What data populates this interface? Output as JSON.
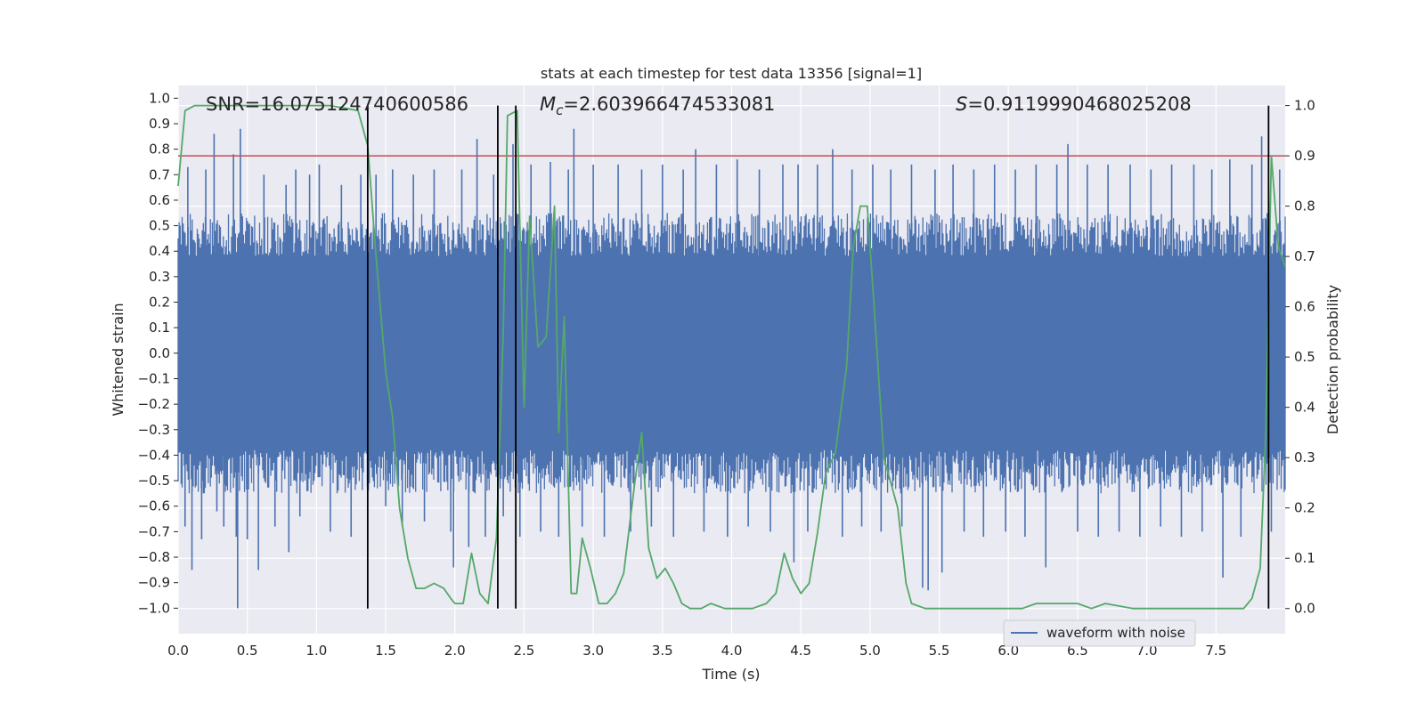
{
  "chart_data": {
    "type": "line",
    "title": "stats at each timestep for test data 13356 [signal=1]",
    "xlabel": "Time (s)",
    "ylabel": "Whitened strain",
    "ylabel_right": "Detection probability",
    "xlim": [
      0,
      8
    ],
    "ylim": [
      -1.1,
      1.05
    ],
    "ylim_right": [
      -0.05,
      1.04
    ],
    "xticks": [
      "0.0",
      "0.5",
      "1.0",
      "1.5",
      "2.0",
      "2.5",
      "3.0",
      "3.5",
      "4.0",
      "4.5",
      "5.0",
      "5.5",
      "6.0",
      "6.5",
      "7.0",
      "7.5"
    ],
    "yticks": [
      "1.0",
      "0.9",
      "0.8",
      "0.7",
      "0.6",
      "0.5",
      "0.4",
      "0.3",
      "0.2",
      "0.1",
      "0.0",
      "-0.1",
      "-0.2",
      "-0.3",
      "-0.4",
      "-0.5",
      "-0.6",
      "-0.7",
      "-0.8",
      "-0.9",
      "-1.0"
    ],
    "yticks_right": [
      "1.0",
      "0.9",
      "0.8",
      "0.7",
      "0.6",
      "0.5",
      "0.4",
      "0.3",
      "0.2",
      "0.1",
      "0.0"
    ],
    "annotations": {
      "snr": "SNR=16.075124740600586",
      "mc_symbol": "M",
      "mc_sub": "c",
      "mc_value": "=2.603966474533081",
      "s_symbol": "S",
      "s_value": "=0.9119990468025208"
    },
    "legend": {
      "label": "waveform with noise",
      "position": "lower-right"
    },
    "threshold_right": 0.9,
    "vertical_lines_x": [
      1.37,
      2.31,
      2.44,
      7.88
    ],
    "series": [
      {
        "name": "waveform with noise",
        "axis": "left",
        "color": "#4c72b0",
        "style": "dense noise, |y| mostly < 0.55, spikes to about ±0.9",
        "spikes": [
          [
            0.05,
            -0.68
          ],
          [
            0.07,
            0.73
          ],
          [
            0.1,
            -0.85
          ],
          [
            0.17,
            -0.73
          ],
          [
            0.2,
            0.72
          ],
          [
            0.26,
            0.86
          ],
          [
            0.28,
            -0.62
          ],
          [
            0.33,
            -0.68
          ],
          [
            0.4,
            0.78
          ],
          [
            0.42,
            -0.72
          ],
          [
            0.43,
            -1.0
          ],
          [
            0.45,
            0.88
          ],
          [
            0.5,
            -0.73
          ],
          [
            0.58,
            -0.85
          ],
          [
            0.62,
            0.7
          ],
          [
            0.7,
            -0.68
          ],
          [
            0.78,
            0.66
          ],
          [
            0.8,
            -0.78
          ],
          [
            0.85,
            0.72
          ],
          [
            0.88,
            -0.64
          ],
          [
            0.95,
            0.7
          ],
          [
            1.02,
            0.74
          ],
          [
            1.1,
            -0.7
          ],
          [
            1.18,
            0.66
          ],
          [
            1.25,
            -0.72
          ],
          [
            1.32,
            0.7
          ],
          [
            1.43,
            0.7
          ],
          [
            1.5,
            -0.6
          ],
          [
            1.55,
            0.72
          ],
          [
            1.62,
            -0.68
          ],
          [
            1.7,
            0.7
          ],
          [
            1.78,
            -0.66
          ],
          [
            1.85,
            0.72
          ],
          [
            1.97,
            -0.7
          ],
          [
            1.99,
            -0.84
          ],
          [
            2.05,
            0.72
          ],
          [
            2.1,
            -0.76
          ],
          [
            2.16,
            0.84
          ],
          [
            2.22,
            -0.72
          ],
          [
            2.28,
            0.7
          ],
          [
            2.35,
            -0.64
          ],
          [
            2.42,
            0.82
          ],
          [
            2.47,
            -0.72
          ],
          [
            2.55,
            0.74
          ],
          [
            2.62,
            -0.7
          ],
          [
            2.69,
            0.75
          ],
          [
            2.75,
            -0.72
          ],
          [
            2.82,
            0.72
          ],
          [
            2.86,
            0.88
          ],
          [
            2.92,
            -0.68
          ],
          [
            3.0,
            0.74
          ],
          [
            3.08,
            -0.72
          ],
          [
            3.18,
            0.74
          ],
          [
            3.27,
            -0.7
          ],
          [
            3.35,
            0.72
          ],
          [
            3.42,
            -0.68
          ],
          [
            3.5,
            0.74
          ],
          [
            3.58,
            -0.72
          ],
          [
            3.65,
            0.72
          ],
          [
            3.74,
            0.8
          ],
          [
            3.8,
            -0.7
          ],
          [
            3.89,
            0.74
          ],
          [
            3.97,
            -0.72
          ],
          [
            4.04,
            0.76
          ],
          [
            4.12,
            -0.68
          ],
          [
            4.2,
            0.72
          ],
          [
            4.28,
            -0.7
          ],
          [
            4.37,
            0.74
          ],
          [
            4.45,
            -0.82
          ],
          [
            4.48,
            0.74
          ],
          [
            4.55,
            -0.7
          ],
          [
            4.62,
            0.74
          ],
          [
            4.73,
            0.8
          ],
          [
            4.8,
            -0.72
          ],
          [
            4.87,
            0.72
          ],
          [
            4.94,
            -0.68
          ],
          [
            5.02,
            0.74
          ],
          [
            5.08,
            -0.7
          ],
          [
            5.15,
            0.72
          ],
          [
            5.23,
            -0.68
          ],
          [
            5.3,
            0.74
          ],
          [
            5.38,
            -0.92
          ],
          [
            5.42,
            -0.93
          ],
          [
            5.47,
            0.72
          ],
          [
            5.52,
            -0.86
          ],
          [
            5.6,
            0.74
          ],
          [
            5.68,
            -0.7
          ],
          [
            5.75,
            0.72
          ],
          [
            5.82,
            -0.72
          ],
          [
            5.9,
            0.74
          ],
          [
            5.98,
            -0.7
          ],
          [
            6.05,
            0.72
          ],
          [
            6.12,
            -0.72
          ],
          [
            6.2,
            0.74
          ],
          [
            6.27,
            -0.84
          ],
          [
            6.35,
            0.74
          ],
          [
            6.43,
            0.82
          ],
          [
            6.5,
            -0.7
          ],
          [
            6.57,
            0.74
          ],
          [
            6.65,
            -0.72
          ],
          [
            6.72,
            0.74
          ],
          [
            6.8,
            -0.7
          ],
          [
            6.88,
            0.74
          ],
          [
            6.95,
            -0.72
          ],
          [
            7.03,
            0.72
          ],
          [
            7.1,
            -0.68
          ],
          [
            7.18,
            0.74
          ],
          [
            7.25,
            -0.72
          ],
          [
            7.34,
            0.74
          ],
          [
            7.4,
            -0.7
          ],
          [
            7.47,
            0.72
          ],
          [
            7.55,
            -0.88
          ],
          [
            7.6,
            0.76
          ],
          [
            7.68,
            -0.72
          ],
          [
            7.76,
            0.74
          ],
          [
            7.83,
            0.85
          ],
          [
            7.9,
            -0.7
          ],
          [
            7.96,
            0.72
          ]
        ]
      },
      {
        "name": "detection probability",
        "axis": "right",
        "color": "#55a868",
        "points": [
          [
            0.0,
            0.84
          ],
          [
            0.05,
            0.99
          ],
          [
            0.12,
            1.0
          ],
          [
            0.4,
            1.0
          ],
          [
            0.46,
            1.0
          ],
          [
            1.1,
            1.0
          ],
          [
            1.3,
            0.99
          ],
          [
            1.37,
            0.92
          ],
          [
            1.43,
            0.7
          ],
          [
            1.5,
            0.47
          ],
          [
            1.55,
            0.38
          ],
          [
            1.6,
            0.2
          ],
          [
            1.66,
            0.1
          ],
          [
            1.72,
            0.04
          ],
          [
            1.78,
            0.04
          ],
          [
            1.85,
            0.05
          ],
          [
            1.92,
            0.04
          ],
          [
            1.97,
            0.02
          ],
          [
            2.0,
            0.01
          ],
          [
            2.06,
            0.01
          ],
          [
            2.12,
            0.11
          ],
          [
            2.18,
            0.03
          ],
          [
            2.24,
            0.01
          ],
          [
            2.3,
            0.14
          ],
          [
            2.35,
            0.55
          ],
          [
            2.38,
            0.98
          ],
          [
            2.45,
            0.99
          ],
          [
            2.5,
            0.4
          ],
          [
            2.54,
            0.78
          ],
          [
            2.6,
            0.52
          ],
          [
            2.66,
            0.54
          ],
          [
            2.72,
            0.8
          ],
          [
            2.75,
            0.35
          ],
          [
            2.79,
            0.58
          ],
          [
            2.84,
            0.03
          ],
          [
            2.88,
            0.03
          ],
          [
            2.92,
            0.14
          ],
          [
            2.98,
            0.08
          ],
          [
            3.04,
            0.01
          ],
          [
            3.1,
            0.01
          ],
          [
            3.16,
            0.03
          ],
          [
            3.22,
            0.07
          ],
          [
            3.3,
            0.25
          ],
          [
            3.35,
            0.35
          ],
          [
            3.4,
            0.12
          ],
          [
            3.46,
            0.06
          ],
          [
            3.52,
            0.08
          ],
          [
            3.58,
            0.05
          ],
          [
            3.64,
            0.01
          ],
          [
            3.7,
            0.0
          ],
          [
            3.78,
            0.0
          ],
          [
            3.85,
            0.01
          ],
          [
            3.95,
            0.0
          ],
          [
            4.05,
            0.0
          ],
          [
            4.15,
            0.0
          ],
          [
            4.25,
            0.01
          ],
          [
            4.32,
            0.03
          ],
          [
            4.38,
            0.11
          ],
          [
            4.44,
            0.06
          ],
          [
            4.5,
            0.03
          ],
          [
            4.56,
            0.05
          ],
          [
            4.62,
            0.15
          ],
          [
            4.68,
            0.27
          ],
          [
            4.75,
            0.31
          ],
          [
            4.83,
            0.48
          ],
          [
            4.88,
            0.72
          ],
          [
            4.93,
            0.8
          ],
          [
            4.98,
            0.8
          ],
          [
            5.03,
            0.6
          ],
          [
            5.1,
            0.3
          ],
          [
            5.2,
            0.2
          ],
          [
            5.26,
            0.05
          ],
          [
            5.3,
            0.01
          ],
          [
            5.4,
            0.0
          ],
          [
            5.6,
            0.0
          ],
          [
            5.9,
            0.0
          ],
          [
            6.1,
            0.0
          ],
          [
            6.2,
            0.01
          ],
          [
            6.35,
            0.01
          ],
          [
            6.45,
            0.01
          ],
          [
            6.5,
            0.01
          ],
          [
            6.6,
            0.0
          ],
          [
            6.7,
            0.01
          ],
          [
            6.9,
            0.0
          ],
          [
            7.1,
            0.0
          ],
          [
            7.3,
            0.0
          ],
          [
            7.5,
            0.0
          ],
          [
            7.7,
            0.0
          ],
          [
            7.76,
            0.02
          ],
          [
            7.82,
            0.08
          ],
          [
            7.86,
            0.35
          ],
          [
            7.9,
            0.9
          ],
          [
            7.95,
            0.72
          ],
          [
            8.0,
            0.68
          ]
        ]
      }
    ]
  }
}
